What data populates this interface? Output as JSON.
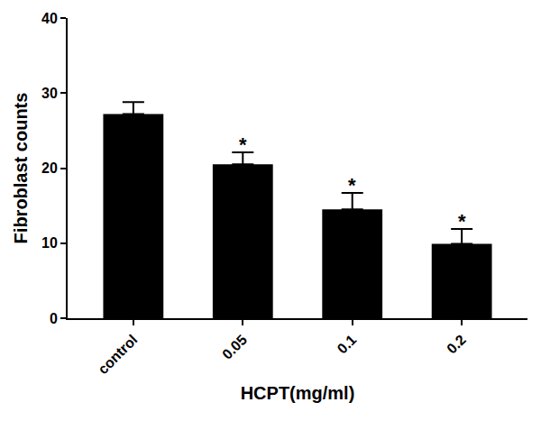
{
  "chart_data": {
    "type": "bar",
    "x_label": "HCPT(mg/ml)",
    "y_label": "Fibroblast counts",
    "categories": [
      "control",
      "0.05",
      "0.1",
      "0.2"
    ],
    "values": [
      27.2,
      20.5,
      14.5,
      9.9
    ],
    "errors": [
      1.6,
      1.6,
      2.2,
      2.0
    ],
    "color": "#000000",
    "ylim": [
      0,
      40
    ],
    "yticks": [
      0,
      10,
      20,
      30,
      40
    ],
    "grid": false,
    "annotations": [
      {
        "category": "0.05",
        "text": "*"
      },
      {
        "category": "0.1",
        "text": "*"
      },
      {
        "category": "0.2",
        "text": "*"
      }
    ]
  }
}
